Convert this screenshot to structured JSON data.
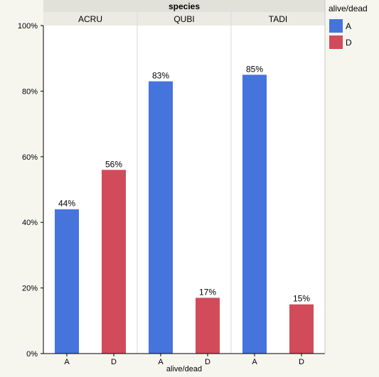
{
  "chart_data": {
    "type": "bar",
    "facet_title": "species",
    "facets": [
      "ACRU",
      "QUBI",
      "TADI"
    ],
    "categories": [
      "A",
      "D"
    ],
    "values": {
      "ACRU": [
        44,
        56
      ],
      "QUBI": [
        83,
        17
      ],
      "TADI": [
        85,
        15
      ]
    },
    "data_labels": {
      "ACRU": [
        "44%",
        "56%"
      ],
      "QUBI": [
        "83%",
        "17%"
      ],
      "TADI": [
        "85%",
        "15%"
      ]
    },
    "y_ticks": [
      "0%",
      "20%",
      "40%",
      "60%",
      "80%",
      "100%"
    ],
    "ylim": [
      0,
      100
    ],
    "xlabel": "alive/dead",
    "ylabel": "",
    "legend": {
      "title": "alive/dead",
      "items": [
        {
          "label": "A",
          "color": "#4674dd"
        },
        {
          "label": "D",
          "color": "#d24b5a"
        }
      ],
      "placement": "right"
    },
    "colors": {
      "A": "#4674dd",
      "D": "#d24b5a"
    },
    "grid": false
  }
}
